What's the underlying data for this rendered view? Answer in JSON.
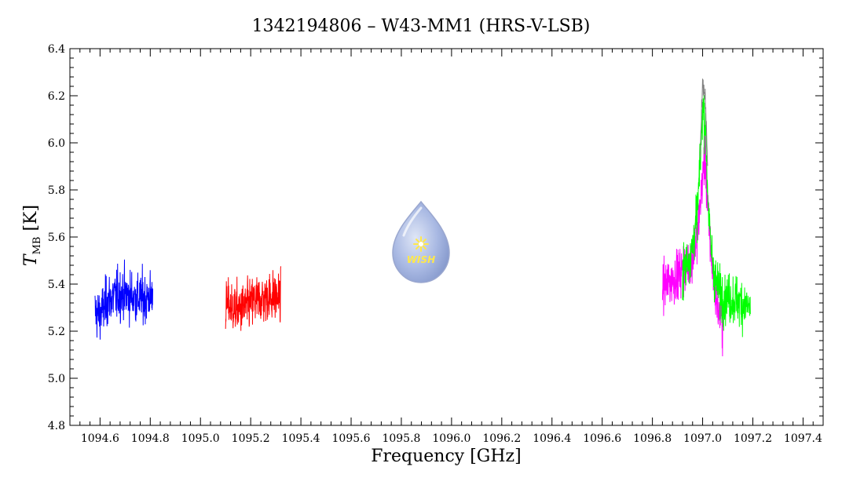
{
  "chart_data": {
    "type": "line",
    "title": "1342194806 – W43-MM1 (HRS-V-LSB)",
    "xlabel": "Frequency [GHz]",
    "ylabel_main": "T",
    "ylabel_sub": "MB",
    "ylabel_unit": " [K]",
    "xlim": [
      1094.48,
      1097.48
    ],
    "ylim": [
      4.8,
      6.4
    ],
    "x_ticks": [
      "1094.6",
      "1094.8",
      "1095.0",
      "1095.2",
      "1095.4",
      "1095.6",
      "1095.8",
      "1096.0",
      "1096.2",
      "1096.4",
      "1096.6",
      "1096.8",
      "1097.0",
      "1097.2",
      "1097.4"
    ],
    "y_ticks": [
      "4.8",
      "5.0",
      "5.2",
      "5.4",
      "5.6",
      "5.8",
      "6.0",
      "6.2",
      "6.4"
    ],
    "grid": false,
    "series": [
      {
        "color": "#0000ff",
        "x": [
          1094.58,
          1094.6,
          1094.63,
          1094.66,
          1094.69,
          1094.72,
          1094.75,
          1094.78,
          1094.81
        ],
        "y": [
          5.28,
          5.27,
          5.33,
          5.35,
          5.36,
          5.35,
          5.34,
          5.34,
          5.35
        ]
      },
      {
        "color": "#ff0000",
        "x": [
          1095.1,
          1095.13,
          1095.16,
          1095.19,
          1095.22,
          1095.25,
          1095.28,
          1095.32
        ],
        "y": [
          5.31,
          5.3,
          5.29,
          5.31,
          5.33,
          5.34,
          5.35,
          5.34
        ]
      },
      {
        "color": "#ff00ff",
        "x": [
          1096.84,
          1096.86,
          1096.88,
          1096.9,
          1096.92,
          1096.94,
          1096.96,
          1096.98,
          1097.0,
          1097.01,
          1097.02,
          1097.04,
          1097.06,
          1097.08
        ],
        "y": [
          5.4,
          5.4,
          5.42,
          5.44,
          5.46,
          5.48,
          5.52,
          5.62,
          5.85,
          5.95,
          5.72,
          5.45,
          5.3,
          5.22
        ]
      },
      {
        "color": "#00ff00",
        "x": [
          1096.92,
          1096.94,
          1096.96,
          1096.98,
          1096.99,
          1097.0,
          1097.01,
          1097.02,
          1097.03,
          1097.05,
          1097.07,
          1097.09,
          1097.11,
          1097.14,
          1097.17,
          1097.19
        ],
        "y": [
          5.44,
          5.5,
          5.56,
          5.72,
          5.92,
          6.15,
          6.1,
          5.8,
          5.58,
          5.42,
          5.36,
          5.34,
          5.34,
          5.33,
          5.31,
          5.3
        ]
      },
      {
        "color": "#808080",
        "x": [
          1096.99,
          1097.0,
          1097.01,
          1097.02
        ],
        "y": [
          5.95,
          6.24,
          6.2,
          5.9
        ]
      }
    ]
  },
  "logo": {
    "text": "WISH"
  }
}
